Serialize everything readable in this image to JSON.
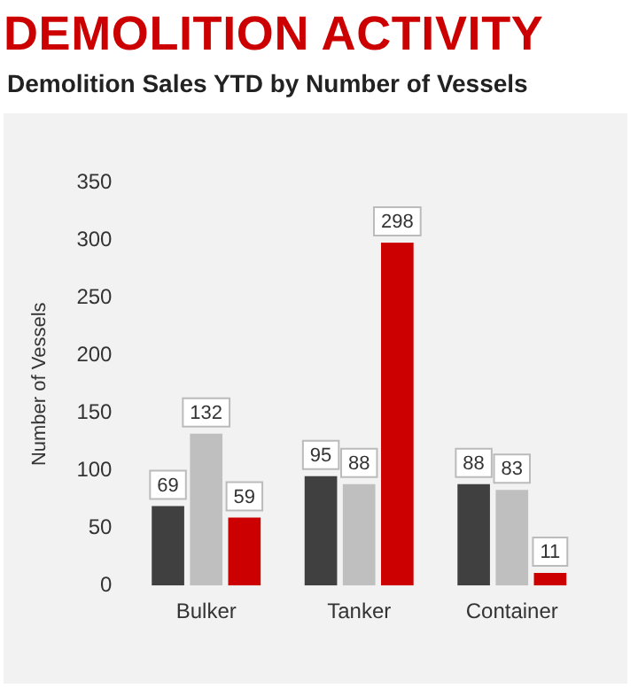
{
  "chart_data": {
    "type": "bar",
    "title": "DEMOLITION ACTIVITY",
    "subtitle": "Demolition Sales YTD by Number of Vessels",
    "ylabel": "Number of Vessels",
    "categories": [
      "Bulker",
      "Tanker",
      "Container"
    ],
    "series": [
      {
        "color": "#404040",
        "values": [
          69,
          95,
          88
        ]
      },
      {
        "color": "#bfbfbf",
        "values": [
          132,
          88,
          83
        ]
      },
      {
        "color": "#cc0000",
        "values": [
          59,
          298,
          11
        ]
      }
    ],
    "ylim": [
      0,
      350
    ],
    "yticks": [
      0,
      50,
      100,
      150,
      200,
      250,
      300,
      350
    ],
    "grid": false,
    "legend": false,
    "data_labels": true
  }
}
